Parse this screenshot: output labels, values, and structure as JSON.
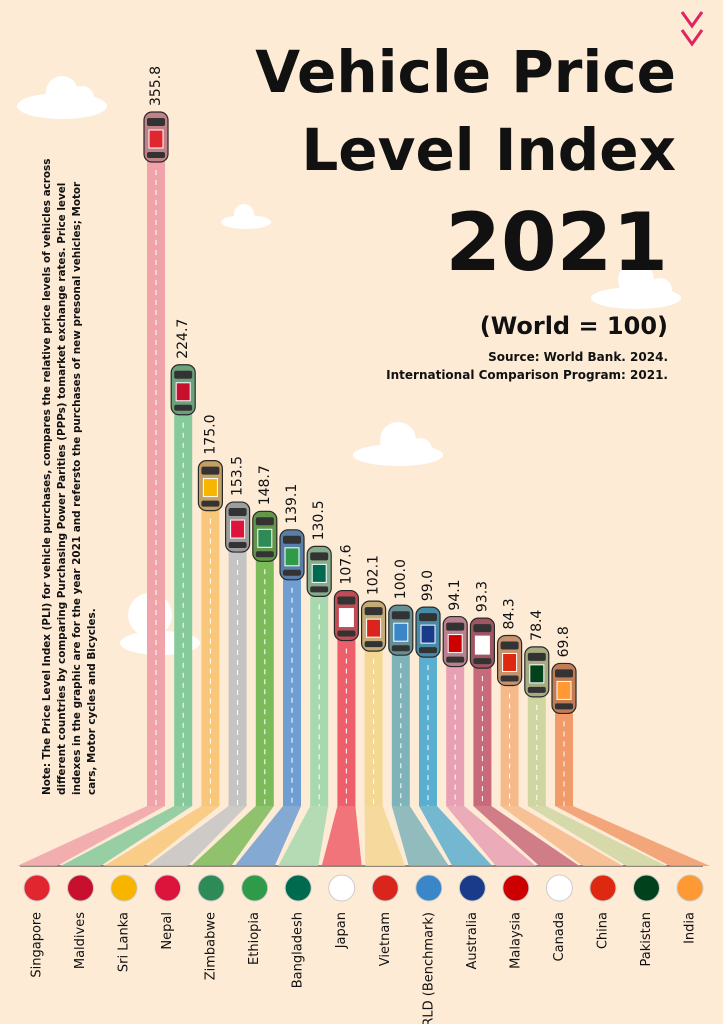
{
  "chart_data": {
    "type": "bar",
    "title_lines": [
      "Vehicle Price",
      "Level Index",
      "2021"
    ],
    "subtitle": "(World = 100)",
    "source_lines": [
      "Source: World Bank. 2024.",
      "International Comparison Program: 2021."
    ],
    "note": "Note: The Price Level Index (PLI) for vehicle purchases, compares the relative price levels of vehicles across different countries by comparing Purchasing Power Parities (PPPs) tomarket exchange rates. Price level indexes in the graphic are for the year 2021 and  refersto the purchases of new presonal vehicles; Motor cars, Motor cycles and Bicycles.",
    "categories": [
      "Singapore",
      "Maldives",
      "Sri Lanka",
      "Nepal",
      "Zimbabwe",
      "Ethiopia",
      "Bangladesh",
      "Japan",
      "Vietnam",
      "WORLD (Benchmark)",
      "Australia",
      "Malaysia",
      "Canada",
      "China",
      "Pakistan",
      "India"
    ],
    "values": [
      355.8,
      224.7,
      175.0,
      153.5,
      148.7,
      139.1,
      130.5,
      107.6,
      102.1,
      100.0,
      99.0,
      94.1,
      93.3,
      84.3,
      78.4,
      69.8
    ],
    "value_labels": [
      "355.8",
      "224.7",
      "175.0",
      "153.5",
      "148.7",
      "139.1",
      "130.5",
      "107.6",
      "102.1",
      "100.0",
      "99.0",
      "94.1",
      "93.3",
      "84.3",
      "78.4",
      "69.8"
    ],
    "colors": [
      "#f0a3a8",
      "#86c99a",
      "#f8c77a",
      "#c4c4c4",
      "#7cbb5a",
      "#6f9fd2",
      "#a8d8ae",
      "#ef5f6b",
      "#f4d793",
      "#7fb3ba",
      "#5aaed0",
      "#e8a0b4",
      "#c86a7a",
      "#f6b98a",
      "#cfd6a2",
      "#f19a6a"
    ]
  }
}
